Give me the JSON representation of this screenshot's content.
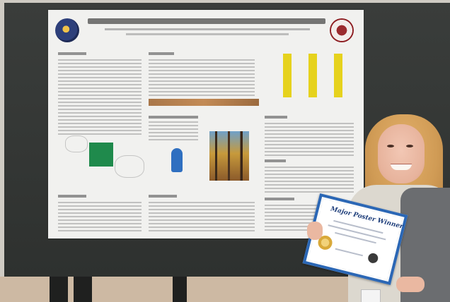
{
  "certificate": {
    "title": "Major Poster Winner"
  },
  "colors": {
    "board": "#353836",
    "poster": "#f1f1ef",
    "certificate_border": "#2b67b5",
    "bar_highlight": "#e6d21d",
    "hair": "#d09b55"
  },
  "icons": {
    "left_logo": "university-seal-icon",
    "right_logo": "eagle-emblem-icon",
    "certificate_seal": "gold-seal-icon"
  }
}
